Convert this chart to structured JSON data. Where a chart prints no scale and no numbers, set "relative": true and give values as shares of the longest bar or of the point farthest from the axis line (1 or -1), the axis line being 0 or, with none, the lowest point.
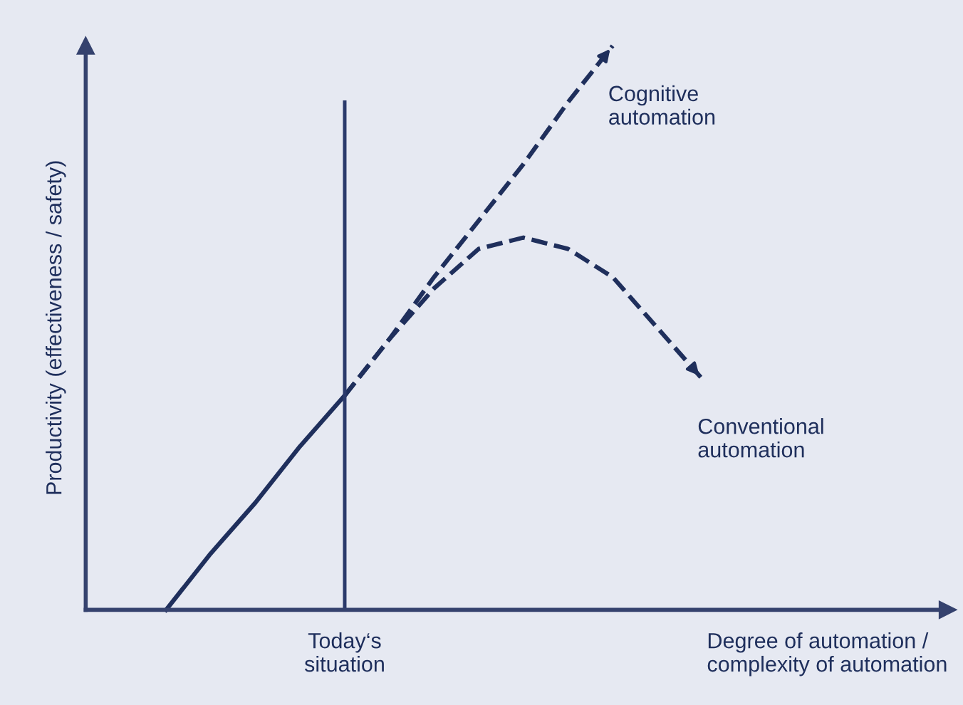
{
  "chart_data": {
    "type": "line",
    "relative": true,
    "ylabel": "Productivity (effectiveness / safety)",
    "xlabel": "Degree of automation /\ncomplexity of automation",
    "categories": [
      null,
      null,
      null,
      null,
      null,
      null,
      null,
      null,
      null,
      null,
      null,
      null,
      null,
      null,
      null,
      null,
      null,
      null
    ],
    "series": [
      {
        "color": "#1f2f5c",
        "line_style": "solid",
        "values": [
          0,
          0.1,
          0.19,
          0.29,
          0.38,
          null,
          null,
          null,
          null,
          null,
          null,
          null,
          null,
          null,
          null,
          null,
          null,
          null
        ]
      },
      {
        "name": "Cognitive\nautomation",
        "color": "#1f2f5c",
        "line_style": "dashed",
        "values": [
          null,
          null,
          null,
          null,
          0.38,
          0.48,
          0.59,
          0.69,
          0.79,
          0.9,
          1.0,
          null,
          null,
          null,
          null,
          null,
          null,
          null
        ]
      },
      {
        "name": "Conventional\nautomation",
        "color": "#1f2f5c",
        "line_style": "dashed",
        "values": [
          null,
          null,
          null,
          null,
          0.38,
          0.48,
          0.57,
          0.64,
          0.66,
          0.64,
          0.59,
          0.5,
          0.41,
          null,
          null,
          null,
          null,
          null
        ]
      }
    ],
    "annotations": [
      "Today‘s\nsituation"
    ],
    "grid": false,
    "marker": "none"
  }
}
